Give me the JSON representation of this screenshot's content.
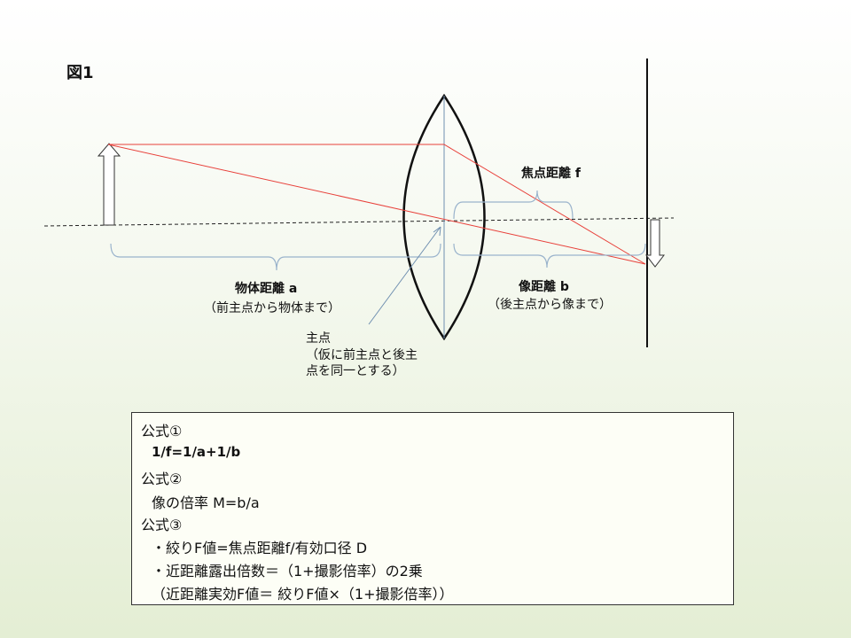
{
  "figure_label": "図1",
  "labels": {
    "focal": "焦点距離 f",
    "object_distance": "物体距離 a",
    "object_distance_note": "（前主点から物体まで）",
    "image_distance": "像距離 b",
    "image_distance_note": "（後主点から像まで）",
    "principal_point": "主点",
    "principal_note_1": "（仮に前主点と後主",
    "principal_note_2": "点を同一とする）"
  },
  "formulas": {
    "f1_title": "公式①",
    "f1": "1/f=1/a+1/b",
    "f2_title": "公式②",
    "f2": "像の倍率 M=b/a",
    "f3_title": "公式③",
    "f3_a": "・絞りF値=焦点距離f/有効口径 D",
    "f3_b": "・近距離露出倍数＝（1+撮影倍率）の2乗",
    "f3_c": "（近距離実効F値＝ 絞りF値×（1+撮影倍率））"
  },
  "colors": {
    "ray": "#e8403a",
    "guide": "#6f8fb0",
    "brace": "#9ab3cc"
  }
}
